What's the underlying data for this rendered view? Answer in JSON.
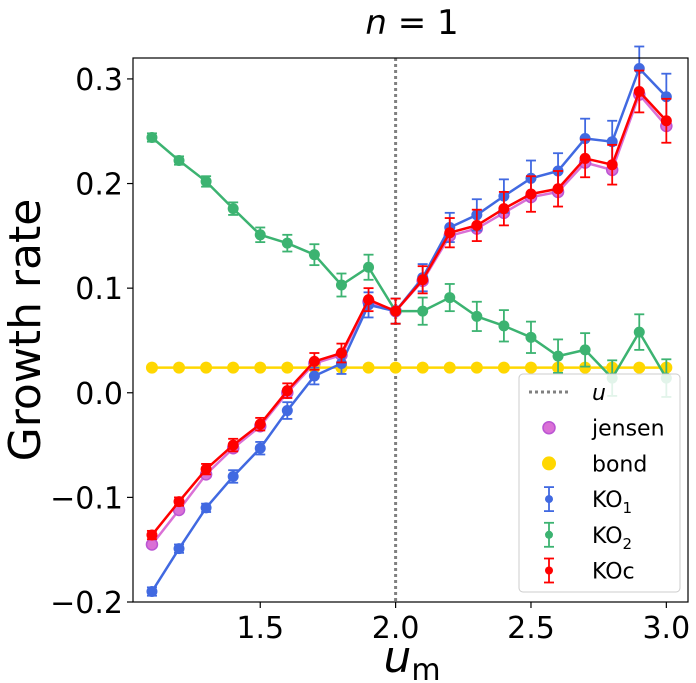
{
  "chart_data": {
    "type": "line",
    "title": "n = 1",
    "xlabel": "u_m",
    "ylabel": "Growth rate",
    "xlim": [
      1.03,
      3.08
    ],
    "ylim": [
      -0.2,
      0.32
    ],
    "x_ticks": [
      1.5,
      2.0,
      2.5,
      3.0
    ],
    "x_tick_labels": [
      "1.5",
      "2.0",
      "2.5",
      "3.0"
    ],
    "y_ticks": [
      -0.2,
      -0.1,
      0.0,
      0.1,
      0.2,
      0.3
    ],
    "y_tick_labels": [
      "−0.2",
      "−0.1",
      "0.0",
      "0.1",
      "0.2",
      "0.3"
    ],
    "grid": false,
    "legend_position": "lower-right",
    "vline": {
      "name": "u",
      "x": 2.0,
      "color": "#808080",
      "style": "dotted"
    },
    "x": [
      1.1,
      1.2,
      1.3,
      1.4,
      1.5,
      1.6,
      1.7,
      1.8,
      1.9,
      2.0,
      2.1,
      2.2,
      2.3,
      2.4,
      2.5,
      2.6,
      2.7,
      2.8,
      2.9,
      3.0
    ],
    "series": [
      {
        "name": "jensen",
        "kind": "line-marker",
        "color": "#DA70D6",
        "values": [
          -0.145,
          -0.112,
          -0.078,
          -0.053,
          -0.032,
          0.0,
          0.028,
          0.036,
          0.087,
          0.078,
          0.107,
          0.15,
          0.157,
          0.172,
          0.187,
          0.192,
          0.22,
          0.213,
          0.285,
          0.255
        ]
      },
      {
        "name": "bond",
        "kind": "line-marker",
        "color": "#FFD700",
        "values": [
          0.024,
          0.024,
          0.024,
          0.024,
          0.024,
          0.024,
          0.024,
          0.024,
          0.024,
          0.024,
          0.024,
          0.024,
          0.024,
          0.024,
          0.024,
          0.024,
          0.024,
          0.024,
          0.024,
          0.024
        ]
      },
      {
        "name": "KO1",
        "kind": "errorbar",
        "color": "#4169E1",
        "values": [
          -0.19,
          -0.149,
          -0.11,
          -0.08,
          -0.053,
          -0.017,
          0.016,
          0.028,
          0.084,
          0.078,
          0.11,
          0.158,
          0.17,
          0.188,
          0.205,
          0.212,
          0.243,
          0.24,
          0.31,
          0.283
        ],
        "errors": [
          0.004,
          0.004,
          0.004,
          0.006,
          0.006,
          0.008,
          0.008,
          0.01,
          0.012,
          0.012,
          0.013,
          0.014,
          0.015,
          0.016,
          0.017,
          0.017,
          0.019,
          0.02,
          0.021,
          0.022
        ]
      },
      {
        "name": "KO2",
        "kind": "errorbar",
        "color": "#3CB371",
        "values": [
          0.244,
          0.222,
          0.202,
          0.176,
          0.151,
          0.143,
          0.132,
          0.103,
          0.12,
          0.078,
          0.078,
          0.091,
          0.073,
          0.064,
          0.053,
          0.035,
          0.041,
          0.014,
          0.058,
          0.014
        ],
        "errors": [
          0.004,
          0.004,
          0.005,
          0.006,
          0.007,
          0.008,
          0.01,
          0.011,
          0.012,
          0.012,
          0.013,
          0.013,
          0.014,
          0.015,
          0.015,
          0.016,
          0.016,
          0.017,
          0.017,
          0.018
        ]
      },
      {
        "name": "KOc",
        "kind": "errorbar",
        "color": "#FF0000",
        "values": [
          -0.136,
          -0.104,
          -0.073,
          -0.05,
          -0.03,
          0.002,
          0.03,
          0.038,
          0.089,
          0.078,
          0.108,
          0.153,
          0.16,
          0.176,
          0.19,
          0.195,
          0.224,
          0.218,
          0.288,
          0.26
        ],
        "errors": [
          0.004,
          0.004,
          0.005,
          0.006,
          0.006,
          0.007,
          0.008,
          0.009,
          0.011,
          0.012,
          0.013,
          0.014,
          0.015,
          0.016,
          0.017,
          0.017,
          0.018,
          0.019,
          0.02,
          0.021
        ]
      }
    ],
    "legend": [
      {
        "label": "u",
        "marker": "dotted-line",
        "color": "#808080"
      },
      {
        "label": "jensen",
        "marker": "ring",
        "color": "#DA70D6"
      },
      {
        "label": "bond",
        "marker": "dot",
        "color": "#FFD700"
      },
      {
        "label": "KO",
        "sub": "1",
        "marker": "errorbar",
        "color": "#4169E1"
      },
      {
        "label": "KO",
        "sub": "2",
        "marker": "errorbar",
        "color": "#3CB371"
      },
      {
        "label": "KOc",
        "sub": "",
        "marker": "errorbar",
        "color": "#FF0000"
      }
    ]
  }
}
